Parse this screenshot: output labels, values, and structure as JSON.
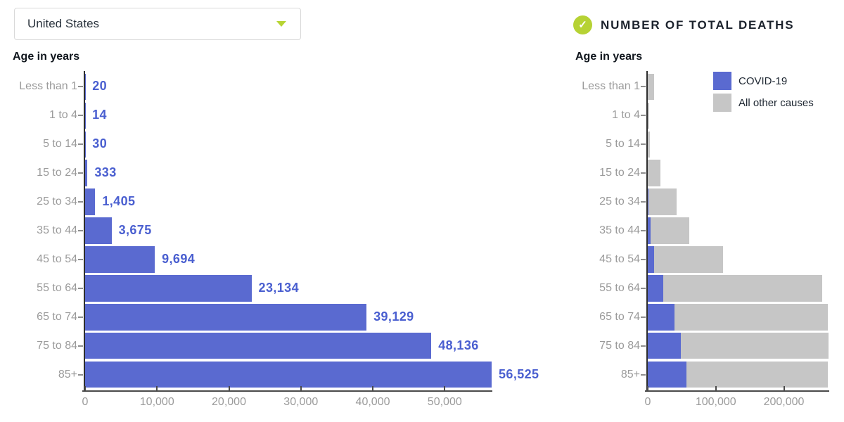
{
  "dropdown": {
    "value": "United States"
  },
  "right_header": {
    "title": "NUMBER OF TOTAL DEATHS",
    "icon": "check-icon"
  },
  "left_chart_title": "Age in years",
  "right_chart_title": "Age in years",
  "legend": {
    "position": "top-right",
    "items": [
      {
        "label": "COVID-19",
        "color": "#5a6ad0"
      },
      {
        "label": "All other causes",
        "color": "#c6c6c6"
      }
    ]
  },
  "colors": {
    "covid_blue": "#5a6ad0",
    "other_gray": "#c6c6c6",
    "value_label_blue": "#4a5fd0",
    "accent_green": "#b6d234",
    "axis_dark": "#4a4a4a",
    "label_gray": "#9b9b9b"
  },
  "chart_data": [
    {
      "type": "bar",
      "orientation": "horizontal",
      "title": "Age in years",
      "series_name": "COVID-19",
      "color": "#5a6ad0",
      "categories": [
        "Less than 1",
        "1 to 4",
        "5 to 14",
        "15 to 24",
        "25 to 34",
        "35 to 44",
        "45 to 54",
        "55 to 64",
        "65 to 74",
        "75 to 84",
        "85+"
      ],
      "values": [
        20,
        14,
        30,
        333,
        1405,
        3675,
        9694,
        23134,
        39129,
        48136,
        56525
      ],
      "value_labels": [
        "20",
        "14",
        "30",
        "333",
        "1,405",
        "3,675",
        "9,694",
        "23,134",
        "39,129",
        "48,136",
        "56,525"
      ],
      "xlim": [
        0,
        56525
      ],
      "grid": false,
      "x_ticks": [
        {
          "value": 0,
          "label": "0"
        },
        {
          "value": 10000,
          "label": "10,000"
        },
        {
          "value": 20000,
          "label": "20,000"
        },
        {
          "value": 30000,
          "label": "30,000"
        },
        {
          "value": 40000,
          "label": "40,000"
        },
        {
          "value": 50000,
          "label": "50,000"
        }
      ]
    },
    {
      "type": "bar",
      "orientation": "horizontal",
      "stacked": true,
      "title": "NUMBER OF TOTAL DEATHS",
      "categories": [
        "Less than 1",
        "1 to 4",
        "5 to 14",
        "15 to 24",
        "25 to 34",
        "35 to 44",
        "45 to 54",
        "55 to 64",
        "65 to 74",
        "75 to 84",
        "85+"
      ],
      "series": [
        {
          "name": "COVID-19",
          "color": "#5a6ad0",
          "values": [
            20,
            14,
            30,
            333,
            1405,
            3675,
            9694,
            23134,
            39129,
            48136,
            56525
          ]
        },
        {
          "name": "All other causes",
          "color": "#c6c6c6",
          "estimated_from_pixels": true,
          "values": [
            9300,
            1700,
            2700,
            18700,
            40600,
            56800,
            101000,
            233300,
            225500,
            217500,
            208100
          ]
        }
      ],
      "xlim": [
        0,
        265600
      ],
      "grid": false,
      "x_ticks": [
        {
          "value": 0,
          "label": "0"
        },
        {
          "value": 100000,
          "label": "100,000"
        },
        {
          "value": 200000,
          "label": "200,000"
        }
      ]
    }
  ]
}
